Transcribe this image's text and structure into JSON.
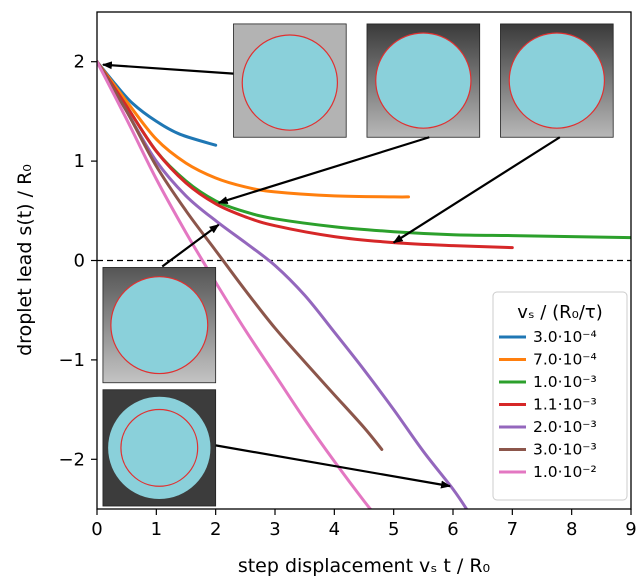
{
  "chart_data": {
    "type": "line",
    "xlabel": "step displacement vₛ t / R₀",
    "ylabel": "droplet lead s(t) / R₀",
    "xlim": [
      0,
      9
    ],
    "ylim": [
      -2.5,
      2.5
    ],
    "xticks": [
      0,
      1,
      2,
      3,
      4,
      5,
      6,
      7,
      8,
      9
    ],
    "yticks": [
      -2,
      -1,
      0,
      1,
      2
    ],
    "ytick_labels": [
      "−2",
      "−1",
      "0",
      "1",
      "2"
    ],
    "grid": false,
    "reference_line": {
      "y": 0,
      "style": "dashed"
    },
    "legend": {
      "title": "vₛ / (R₀/τ)",
      "placement": "lower-right"
    },
    "series": [
      {
        "name": "3.0·10⁻⁴",
        "color": "#1f77b4",
        "x": [
          0,
          0.3,
          0.6,
          1.0,
          1.4,
          2.0
        ],
        "y": [
          2.0,
          1.78,
          1.58,
          1.4,
          1.27,
          1.16
        ]
      },
      {
        "name": "7.0·10⁻⁴",
        "color": "#ff7f0e",
        "x": [
          0,
          0.5,
          1.0,
          1.5,
          2.0,
          2.5,
          3.0,
          4.0,
          5.0,
          5.25
        ],
        "y": [
          2.0,
          1.6,
          1.22,
          0.98,
          0.83,
          0.74,
          0.69,
          0.65,
          0.64,
          0.64
        ]
      },
      {
        "name": "1.0·10⁻³",
        "color": "#2ca02c",
        "x": [
          0,
          0.5,
          1.0,
          1.5,
          2.0,
          2.5,
          3.0,
          4.0,
          5.0,
          6.0,
          7.0,
          8.0,
          9.0
        ],
        "y": [
          2.0,
          1.55,
          1.1,
          0.8,
          0.6,
          0.49,
          0.42,
          0.34,
          0.29,
          0.26,
          0.25,
          0.24,
          0.23
        ]
      },
      {
        "name": "1.1·10⁻³",
        "color": "#d62728",
        "x": [
          0,
          0.5,
          1.0,
          1.5,
          2.0,
          2.5,
          3.0,
          4.0,
          5.0,
          6.0,
          7.0
        ],
        "y": [
          2.0,
          1.55,
          1.1,
          0.78,
          0.57,
          0.44,
          0.35,
          0.24,
          0.18,
          0.15,
          0.13
        ]
      },
      {
        "name": "2.0·10⁻³",
        "color": "#9467bd",
        "x": [
          0,
          0.5,
          1.0,
          1.5,
          2.0,
          2.5,
          3.0,
          3.5,
          4.0,
          4.5,
          5.0,
          5.5,
          6.0,
          6.25
        ],
        "y": [
          2.0,
          1.5,
          1.0,
          0.65,
          0.4,
          0.18,
          -0.05,
          -0.35,
          -0.72,
          -1.1,
          -1.5,
          -1.92,
          -2.3,
          -2.52
        ]
      },
      {
        "name": "3.0·10⁻³",
        "color": "#8c564b",
        "x": [
          0,
          0.5,
          1.0,
          1.5,
          2.0,
          2.5,
          3.0,
          3.5,
          4.0,
          4.5,
          4.8
        ],
        "y": [
          2.0,
          1.5,
          0.95,
          0.5,
          0.1,
          -0.3,
          -0.68,
          -1.02,
          -1.35,
          -1.68,
          -1.9
        ]
      },
      {
        "name": "1.0·10⁻²",
        "color": "#e377c2",
        "x": [
          0,
          0.5,
          1.0,
          1.5,
          2.0,
          2.5,
          3.0,
          3.5,
          4.0,
          4.5,
          4.75
        ],
        "y": [
          2.0,
          1.42,
          0.82,
          0.28,
          -0.22,
          -0.7,
          -1.15,
          -1.6,
          -2.02,
          -2.42,
          -2.6
        ]
      }
    ],
    "insets": [
      {
        "name": "inset-top-1",
        "background": "light",
        "x": [
          2.3,
          4.2
        ],
        "y": [
          1.24,
          2.38
        ]
      },
      {
        "name": "inset-top-2",
        "background": "dark-gradient",
        "x": [
          4.55,
          6.45
        ],
        "y": [
          1.24,
          2.38
        ]
      },
      {
        "name": "inset-top-3",
        "background": "dark-gradient",
        "x": [
          6.8,
          8.7
        ],
        "y": [
          1.24,
          2.38
        ]
      },
      {
        "name": "inset-left-1",
        "background": "gradient",
        "x": [
          0.1,
          2.0
        ],
        "y": [
          -1.23,
          -0.07
        ]
      },
      {
        "name": "inset-left-2",
        "background": "dark",
        "x": [
          0.1,
          2.0
        ],
        "y": [
          -2.47,
          -1.3
        ]
      }
    ],
    "arrows": [
      {
        "from": [
          2.3,
          1.88
        ],
        "to": [
          0.1,
          1.97
        ]
      },
      {
        "from": [
          5.6,
          1.24
        ],
        "to": [
          2.05,
          0.58
        ]
      },
      {
        "from": [
          7.8,
          1.24
        ],
        "to": [
          5.0,
          0.18
        ]
      },
      {
        "from": [
          1.1,
          -0.06
        ],
        "to": [
          2.05,
          0.36
        ]
      },
      {
        "from": [
          2.0,
          -1.86
        ],
        "to": [
          5.95,
          -2.27
        ]
      }
    ]
  }
}
